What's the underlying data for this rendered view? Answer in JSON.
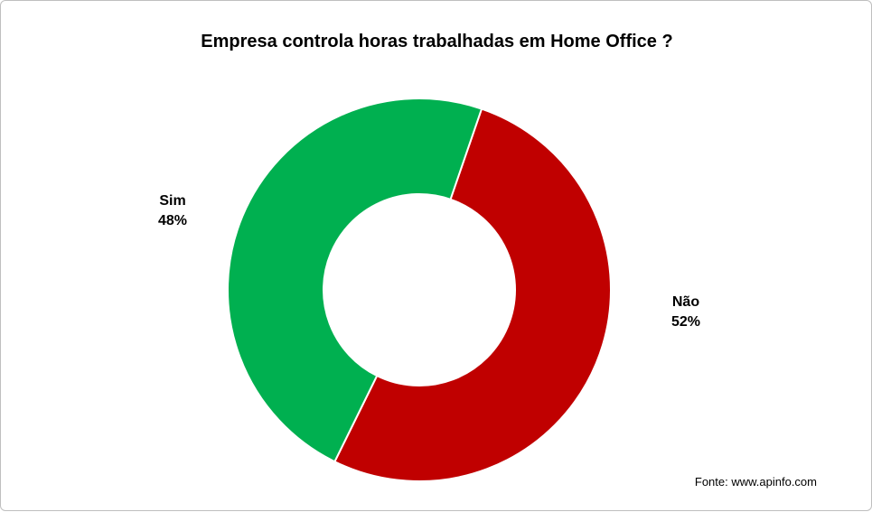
{
  "chart_data": {
    "type": "pie",
    "style": "donut",
    "title": "Empresa controla horas trabalhadas em Home Office ?",
    "slices": [
      {
        "label": "Não",
        "value": 52,
        "value_label": "52%",
        "color": "#C00000"
      },
      {
        "label": "Sim",
        "value": 48,
        "value_label": "48%",
        "color": "#00B050"
      }
    ],
    "legend": "none",
    "source_note": "Fonte: www.apinfo.com"
  }
}
